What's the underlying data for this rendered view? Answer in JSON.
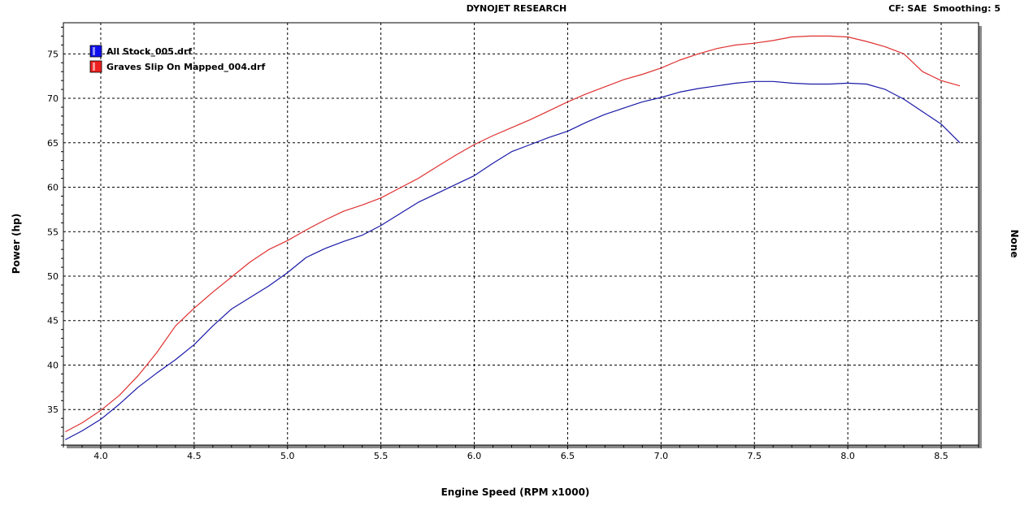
{
  "header": {
    "title": "DYNOJET RESEARCH",
    "cf_label": "CF: SAE",
    "smoothing_label": "Smoothing: 5"
  },
  "chart_data": {
    "type": "line",
    "title": "DYNOJET RESEARCH",
    "xlabel": "Engine Speed (RPM x1000)",
    "ylabel": "Power (hp)",
    "y2label": "None",
    "xlim": [
      3.8,
      8.7
    ],
    "ylim": [
      31,
      78.5
    ],
    "xticks": [
      "4.0",
      "4.5",
      "5.0",
      "5.5",
      "6.0",
      "6.5",
      "7.0",
      "7.5",
      "8.0",
      "8.5"
    ],
    "yticks": [
      "35",
      "40",
      "45",
      "50",
      "55",
      "60",
      "65",
      "70",
      "75"
    ],
    "grid": true,
    "legend_position": "top-left",
    "series": [
      {
        "name": "All Stock_005.drf",
        "color": "#1a1aa8",
        "legend_color": "#1010ee",
        "x": [
          3.81,
          3.9,
          4.0,
          4.1,
          4.2,
          4.3,
          4.4,
          4.5,
          4.6,
          4.7,
          4.8,
          4.9,
          5.0,
          5.1,
          5.2,
          5.3,
          5.4,
          5.5,
          5.6,
          5.7,
          5.8,
          5.9,
          6.0,
          6.1,
          6.2,
          6.3,
          6.4,
          6.5,
          6.6,
          6.7,
          6.8,
          6.9,
          7.0,
          7.1,
          7.2,
          7.3,
          7.4,
          7.5,
          7.6,
          7.7,
          7.8,
          7.9,
          8.0,
          8.1,
          8.2,
          8.3,
          8.4,
          8.5,
          8.6
        ],
        "y": [
          31.6,
          32.6,
          33.9,
          35.6,
          37.5,
          39.1,
          40.6,
          42.3,
          44.4,
          46.3,
          47.6,
          48.9,
          50.4,
          52.1,
          53.1,
          53.9,
          54.6,
          55.7,
          57.0,
          58.3,
          59.3,
          60.3,
          61.3,
          62.7,
          64.0,
          64.8,
          65.6,
          66.3,
          67.3,
          68.2,
          68.9,
          69.6,
          70.1,
          70.7,
          71.1,
          71.4,
          71.7,
          71.9,
          71.9,
          71.7,
          71.6,
          71.6,
          71.7,
          71.6,
          71.0,
          69.9,
          68.5,
          67.1,
          65.0
        ]
      },
      {
        "name": "Graves Slip On Mapped_004.drf",
        "color": "#e03030",
        "legend_color": "#ee2020",
        "x": [
          3.81,
          3.9,
          4.0,
          4.1,
          4.2,
          4.3,
          4.4,
          4.5,
          4.6,
          4.7,
          4.8,
          4.9,
          5.0,
          5.1,
          5.2,
          5.3,
          5.4,
          5.5,
          5.6,
          5.7,
          5.8,
          5.9,
          6.0,
          6.1,
          6.2,
          6.3,
          6.4,
          6.5,
          6.6,
          6.7,
          6.8,
          6.9,
          7.0,
          7.1,
          7.2,
          7.3,
          7.4,
          7.5,
          7.6,
          7.7,
          7.8,
          7.9,
          8.0,
          8.1,
          8.2,
          8.3,
          8.4,
          8.5,
          8.6
        ],
        "y": [
          32.5,
          33.5,
          34.9,
          36.6,
          38.8,
          41.4,
          44.4,
          46.4,
          48.2,
          49.9,
          51.6,
          53.0,
          54.0,
          55.2,
          56.3,
          57.3,
          58.0,
          58.8,
          59.9,
          61.0,
          62.3,
          63.6,
          64.8,
          65.8,
          66.7,
          67.6,
          68.6,
          69.6,
          70.5,
          71.3,
          72.1,
          72.7,
          73.4,
          74.3,
          75.0,
          75.6,
          76.0,
          76.2,
          76.5,
          76.9,
          77.0,
          77.0,
          76.9,
          76.4,
          75.8,
          75.0,
          73.0,
          72.0,
          71.4
        ]
      }
    ]
  }
}
